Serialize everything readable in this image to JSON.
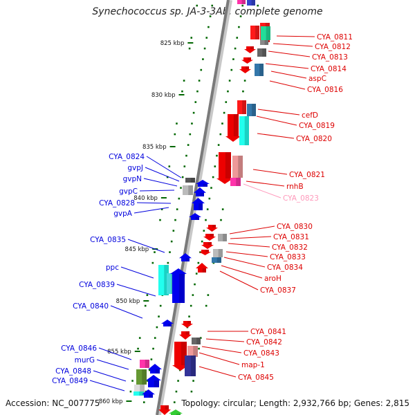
{
  "title": "Synechococcus sp. JA-3-3Ab, complete genome",
  "footer": {
    "accession": "Accession: NC_007775",
    "topology": "Topology: circular; Length: 2,932,766 bp; Genes: 2,815"
  },
  "colors": {
    "left_strand": "#0000dd",
    "right_strand": "#dd0000",
    "faded_label": "#ff99bb",
    "ruler": "#006600"
  },
  "kbp_marks": [
    {
      "label": "825 kbp"
    },
    {
      "label": "830 kbp"
    },
    {
      "label": "835 kbp"
    },
    {
      "label": "840 kbp"
    },
    {
      "label": "845 kbp"
    },
    {
      "label": "850 kbp"
    },
    {
      "label": "855 kbp"
    },
    {
      "label": "860 kbp"
    }
  ],
  "right_genes": [
    {
      "label": "CYA_0811",
      "color": "red"
    },
    {
      "label": "CYA_0812",
      "color": "red"
    },
    {
      "label": "CYA_0813",
      "color": "red"
    },
    {
      "label": "CYA_0814",
      "color": "red"
    },
    {
      "label": "aspC",
      "color": "red"
    },
    {
      "label": "CYA_0816",
      "color": "red"
    },
    {
      "label": "cefD",
      "color": "red"
    },
    {
      "label": "CYA_0819",
      "color": "red"
    },
    {
      "label": "CYA_0820",
      "color": "red"
    },
    {
      "label": "CYA_0821",
      "color": "red"
    },
    {
      "label": "rnhB",
      "color": "red"
    },
    {
      "label": "CYA_0823",
      "color": "faded"
    },
    {
      "label": "CYA_0830",
      "color": "red"
    },
    {
      "label": "CYA_0831",
      "color": "red"
    },
    {
      "label": "CYA_0832",
      "color": "red"
    },
    {
      "label": "CYA_0833",
      "color": "red"
    },
    {
      "label": "CYA_0834",
      "color": "red"
    },
    {
      "label": "aroH",
      "color": "red"
    },
    {
      "label": "CYA_0837",
      "color": "red"
    },
    {
      "label": "CYA_0841",
      "color": "red"
    },
    {
      "label": "CYA_0842",
      "color": "red"
    },
    {
      "label": "CYA_0843",
      "color": "red"
    },
    {
      "label": "map-1",
      "color": "red"
    },
    {
      "label": "CYA_0845",
      "color": "red"
    }
  ],
  "left_genes": [
    {
      "label": "CYA_0824"
    },
    {
      "label": "gvpJ"
    },
    {
      "label": "gvpN"
    },
    {
      "label": "gvpC"
    },
    {
      "label": "CYA_0828"
    },
    {
      "label": "gvpA"
    },
    {
      "label": "CYA_0835"
    },
    {
      "label": "ppc"
    },
    {
      "label": "CYA_0839"
    },
    {
      "label": "CYA_0840"
    },
    {
      "label": "CYA_0846"
    },
    {
      "label": "murG"
    },
    {
      "label": "CYA_0848"
    },
    {
      "label": "CYA_0849"
    }
  ]
}
